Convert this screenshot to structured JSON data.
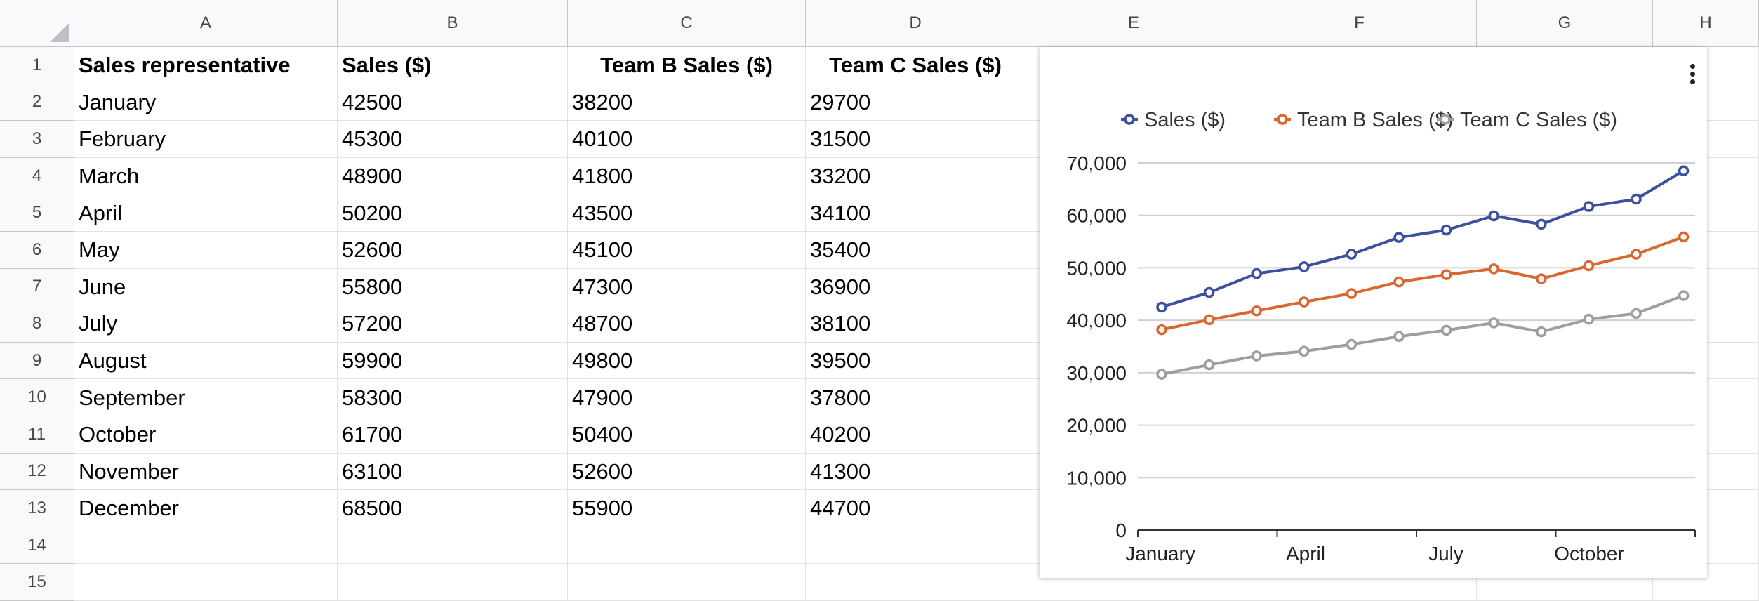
{
  "sheet": {
    "columns": [
      "A",
      "B",
      "C",
      "D",
      "E",
      "F",
      "G",
      "H"
    ],
    "rows": [
      "1",
      "2",
      "3",
      "4",
      "5",
      "6",
      "7",
      "8",
      "9",
      "10",
      "11",
      "12",
      "13",
      "14",
      "15"
    ],
    "headers": [
      "Sales representative",
      "Sales ($)",
      "Team B Sales ($)",
      "Team C Sales ($)"
    ],
    "data": [
      [
        "January",
        "42500",
        "38200",
        "29700"
      ],
      [
        "February",
        "45300",
        "40100",
        "31500"
      ],
      [
        "March",
        "48900",
        "41800",
        "33200"
      ],
      [
        "April",
        "50200",
        "43500",
        "34100"
      ],
      [
        "May",
        "52600",
        "45100",
        "35400"
      ],
      [
        "June",
        "55800",
        "47300",
        "36900"
      ],
      [
        "July",
        "57200",
        "48700",
        "38100"
      ],
      [
        "August",
        "59900",
        "49800",
        "39500"
      ],
      [
        "September",
        "58300",
        "47900",
        "37800"
      ],
      [
        "October",
        "61700",
        "50400",
        "40200"
      ],
      [
        "November",
        "63100",
        "52600",
        "41300"
      ],
      [
        "December",
        "68500",
        "55900",
        "44700"
      ]
    ]
  },
  "chart_data": {
    "type": "line",
    "categories": [
      "January",
      "February",
      "March",
      "April",
      "May",
      "June",
      "July",
      "August",
      "September",
      "October",
      "November",
      "December"
    ],
    "series": [
      {
        "name": "Sales ($)",
        "color": "#3b50a3",
        "values": [
          42500,
          45300,
          48900,
          50200,
          52600,
          55800,
          57200,
          59900,
          58300,
          61700,
          63100,
          68500
        ]
      },
      {
        "name": "Team B Sales ($)",
        "color": "#d9672f",
        "values": [
          38200,
          40100,
          41800,
          43500,
          45100,
          47300,
          48700,
          49800,
          47900,
          50400,
          52600,
          55900
        ]
      },
      {
        "name": "Team C Sales ($)",
        "color": "#9e9e9e",
        "values": [
          29700,
          31500,
          33200,
          34100,
          35400,
          36900,
          38100,
          39500,
          37800,
          40200,
          41300,
          44700
        ]
      }
    ],
    "x_tick_labels": [
      "January",
      "April",
      "July",
      "October"
    ],
    "y_ticks": [
      "0",
      "10,000",
      "20,000",
      "30,000",
      "40,000",
      "50,000",
      "60,000",
      "70,000"
    ],
    "ylim": [
      0,
      70000
    ],
    "legend_position": "top",
    "grid": true
  },
  "icons": {
    "chart_menu": "more-vert-icon"
  }
}
